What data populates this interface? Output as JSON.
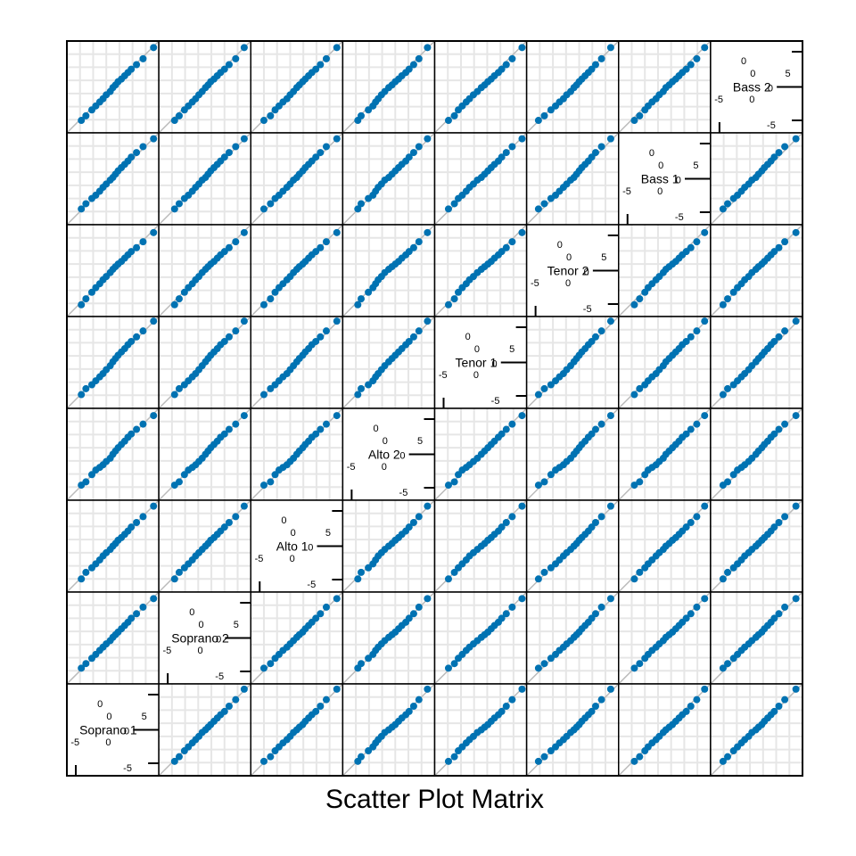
{
  "chart_data": {
    "type": "scatter",
    "subtype": "scatterplot-matrix",
    "xlabel": "Scatter Plot Matrix",
    "variables": [
      "Soprano 1",
      "Soprano 2",
      "Alto 1",
      "Alto 2",
      "Tenor 1",
      "Tenor 2",
      "Bass 1",
      "Bass 2"
    ],
    "diagonal_ticks": [
      "-5",
      "0",
      "5"
    ],
    "axis_range": [
      -7,
      7
    ],
    "reference_line": "y = x",
    "grid": true,
    "point_color": "#0072B2",
    "grid_color": "#e6e6e6",
    "line_color": "#bbbbbb",
    "series": [
      {
        "values": [
          -4.8,
          -4.1,
          -3.2,
          -2.6,
          -2.0,
          -1.5,
          -1.0,
          -0.4,
          0.0,
          0.4,
          0.8,
          1.3,
          1.8,
          2.3,
          2.8,
          3.6,
          4.6,
          6.2
        ]
      },
      {
        "values": [
          -4.6,
          -3.9,
          -3.1,
          -2.5,
          -1.9,
          -1.4,
          -0.9,
          -0.4,
          0.1,
          0.5,
          0.9,
          1.4,
          1.9,
          2.4,
          3.0,
          3.7,
          4.7,
          6.0
        ]
      },
      {
        "values": [
          -5.0,
          -4.0,
          -3.3,
          -2.7,
          -2.1,
          -1.5,
          -1.0,
          -0.5,
          0.0,
          0.4,
          0.9,
          1.3,
          1.8,
          2.3,
          2.9,
          3.6,
          4.5,
          6.1
        ]
      },
      {
        "values": [
          -4.7,
          -4.2,
          -3.1,
          -2.4,
          -2.0,
          -1.6,
          -1.1,
          -0.6,
          0.0,
          0.5,
          1.0,
          1.5,
          2.0,
          2.6,
          3.1,
          3.8,
          4.6,
          5.9
        ]
      },
      {
        "values": [
          -4.9,
          -4.0,
          -3.4,
          -2.8,
          -2.2,
          -1.7,
          -1.1,
          -0.5,
          0.1,
          0.6,
          1.1,
          1.6,
          2.1,
          2.7,
          3.2,
          3.9,
          4.8,
          6.3
        ]
      },
      {
        "values": [
          -5.2,
          -4.3,
          -3.3,
          -2.6,
          -2.0,
          -1.4,
          -0.9,
          -0.3,
          0.2,
          0.6,
          1.0,
          1.4,
          1.9,
          2.4,
          2.9,
          3.5,
          4.4,
          5.8
        ]
      },
      {
        "values": [
          -4.6,
          -3.8,
          -3.0,
          -2.5,
          -1.9,
          -1.3,
          -0.8,
          -0.2,
          0.2,
          0.7,
          1.2,
          1.7,
          2.2,
          2.7,
          3.3,
          4.0,
          4.9,
          6.1
        ]
      },
      {
        "values": [
          -5.1,
          -4.4,
          -3.5,
          -2.9,
          -2.3,
          -1.8,
          -1.2,
          -0.7,
          -0.1,
          0.3,
          0.8,
          1.2,
          1.7,
          2.2,
          2.7,
          3.4,
          4.3,
          6.0
        ]
      }
    ]
  }
}
